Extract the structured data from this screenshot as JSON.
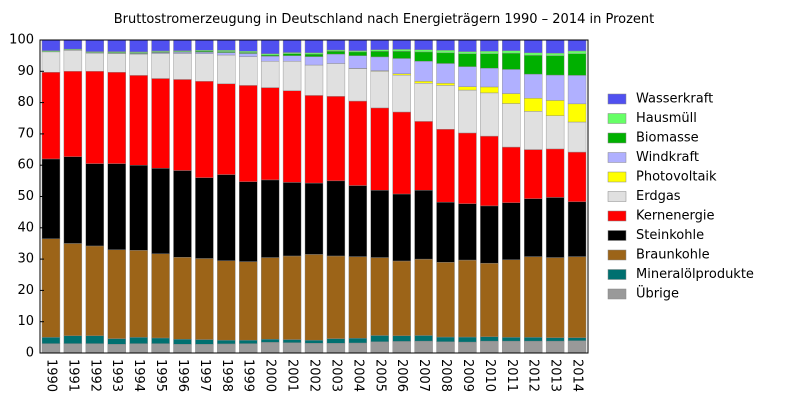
{
  "chart_data": {
    "type": "stacked_bar",
    "title": "Bruttostromerzeugung in Deutschland nach Energieträgern 1990 – 2014 in Prozent",
    "categories": [
      "1990",
      "1991",
      "1992",
      "1993",
      "1994",
      "1995",
      "1996",
      "1997",
      "1998",
      "1999",
      "2000",
      "2001",
      "2002",
      "2003",
      "2004",
      "2005",
      "2006",
      "2007",
      "2008",
      "2009",
      "2010",
      "2011",
      "2012",
      "2013",
      "2014"
    ],
    "ylim": [
      0,
      100
    ],
    "yticks": [
      0,
      10,
      20,
      30,
      40,
      50,
      60,
      70,
      80,
      90,
      100
    ],
    "grid": false,
    "legend": "right",
    "series": [
      {
        "name": "Übrige",
        "color": "#999999",
        "values": [
          3.0,
          3.0,
          3.0,
          2.8,
          3.0,
          3.0,
          2.8,
          2.8,
          2.9,
          3.0,
          3.4,
          3.3,
          3.1,
          3.1,
          3.2,
          3.6,
          3.7,
          3.8,
          3.6,
          3.5,
          3.8,
          3.8,
          3.8,
          3.8,
          3.9
        ]
      },
      {
        "name": "Mineralölprodukte",
        "color": "#007070",
        "values": [
          2.0,
          2.5,
          2.5,
          1.8,
          2.0,
          1.8,
          1.6,
          1.5,
          1.2,
          1.1,
          1.0,
          1.0,
          1.0,
          1.5,
          1.5,
          2.0,
          1.8,
          1.8,
          1.5,
          1.6,
          1.4,
          1.2,
          1.2,
          1.1,
          1.0
        ]
      },
      {
        "name": "Braunkohle",
        "color": "#9c6418",
        "values": [
          31.5,
          29.5,
          28.7,
          28.4,
          27.8,
          26.9,
          26.2,
          25.9,
          25.4,
          25.1,
          26.1,
          26.7,
          27.4,
          26.4,
          26.1,
          24.9,
          23.9,
          24.4,
          23.9,
          24.6,
          23.5,
          24.8,
          25.8,
          25.6,
          25.9
        ]
      },
      {
        "name": "Steinkohle",
        "color": "#000000",
        "values": [
          25.5,
          27.7,
          26.3,
          27.5,
          27.2,
          27.3,
          27.7,
          25.8,
          27.5,
          25.5,
          24.8,
          23.5,
          22.8,
          24.0,
          22.7,
          21.5,
          21.4,
          22.0,
          19.2,
          18.0,
          18.3,
          18.2,
          18.5,
          19.2,
          17.5
        ]
      },
      {
        "name": "Kernenergie",
        "color": "#ff0000",
        "values": [
          27.7,
          27.3,
          29.5,
          29.2,
          28.7,
          28.7,
          29.1,
          30.8,
          29.0,
          30.8,
          29.5,
          29.3,
          28.0,
          27.0,
          27.0,
          26.3,
          26.2,
          22.0,
          23.3,
          22.6,
          22.3,
          17.8,
          15.7,
          15.5,
          15.9
        ]
      },
      {
        "name": "Erdgas",
        "color": "#e0e0e0",
        "values": [
          6.5,
          6.7,
          5.8,
          6.0,
          6.8,
          8.0,
          8.3,
          8.8,
          9.2,
          9.2,
          8.4,
          9.4,
          9.7,
          10.5,
          10.3,
          11.7,
          11.8,
          12.2,
          14.0,
          13.7,
          13.8,
          13.9,
          12.2,
          10.6,
          9.6
        ]
      },
      {
        "name": "Photovoltaik",
        "color": "#ffff00",
        "values": [
          0,
          0,
          0,
          0,
          0,
          0,
          0,
          0,
          0,
          0,
          0,
          0,
          0,
          0,
          0.1,
          0.2,
          0.4,
          0.6,
          0.7,
          1.1,
          1.9,
          3.2,
          4.2,
          4.9,
          5.8
        ]
      },
      {
        "name": "Windkraft",
        "color": "#b0b0ff",
        "values": [
          0,
          0,
          0.1,
          0.1,
          0.2,
          0.3,
          0.4,
          0.5,
          0.8,
          1.0,
          1.6,
          1.8,
          2.7,
          3.0,
          4.1,
          4.4,
          4.9,
          6.4,
          6.3,
          6.4,
          6.0,
          7.7,
          7.7,
          8.1,
          9.1
        ]
      },
      {
        "name": "Biomasse",
        "color": "#00b000",
        "values": [
          0.1,
          0.1,
          0.1,
          0.2,
          0.2,
          0.2,
          0.2,
          0.3,
          0.3,
          0.3,
          0.4,
          0.6,
          0.8,
          0.9,
          1.2,
          1.8,
          2.3,
          3.0,
          3.4,
          4.1,
          4.6,
          5.2,
          6.0,
          6.2,
          6.9
        ]
      },
      {
        "name": "Hausmüll",
        "color": "#66ff66",
        "values": [
          0.3,
          0.3,
          0.3,
          0.3,
          0.3,
          0.3,
          0.3,
          0.3,
          0.4,
          0.4,
          0.4,
          0.4,
          0.4,
          0.4,
          0.4,
          0.5,
          0.6,
          0.7,
          0.8,
          0.7,
          0.8,
          0.8,
          0.8,
          0.8,
          0.9
        ]
      },
      {
        "name": "Wasserkraft",
        "color": "#5050f0",
        "values": [
          3.4,
          2.9,
          3.7,
          3.7,
          3.8,
          3.5,
          3.4,
          3.3,
          3.3,
          3.6,
          4.4,
          4.0,
          4.1,
          3.2,
          3.4,
          3.1,
          3.0,
          3.1,
          3.3,
          3.7,
          3.6,
          3.4,
          4.1,
          4.2,
          3.5
        ]
      }
    ]
  }
}
